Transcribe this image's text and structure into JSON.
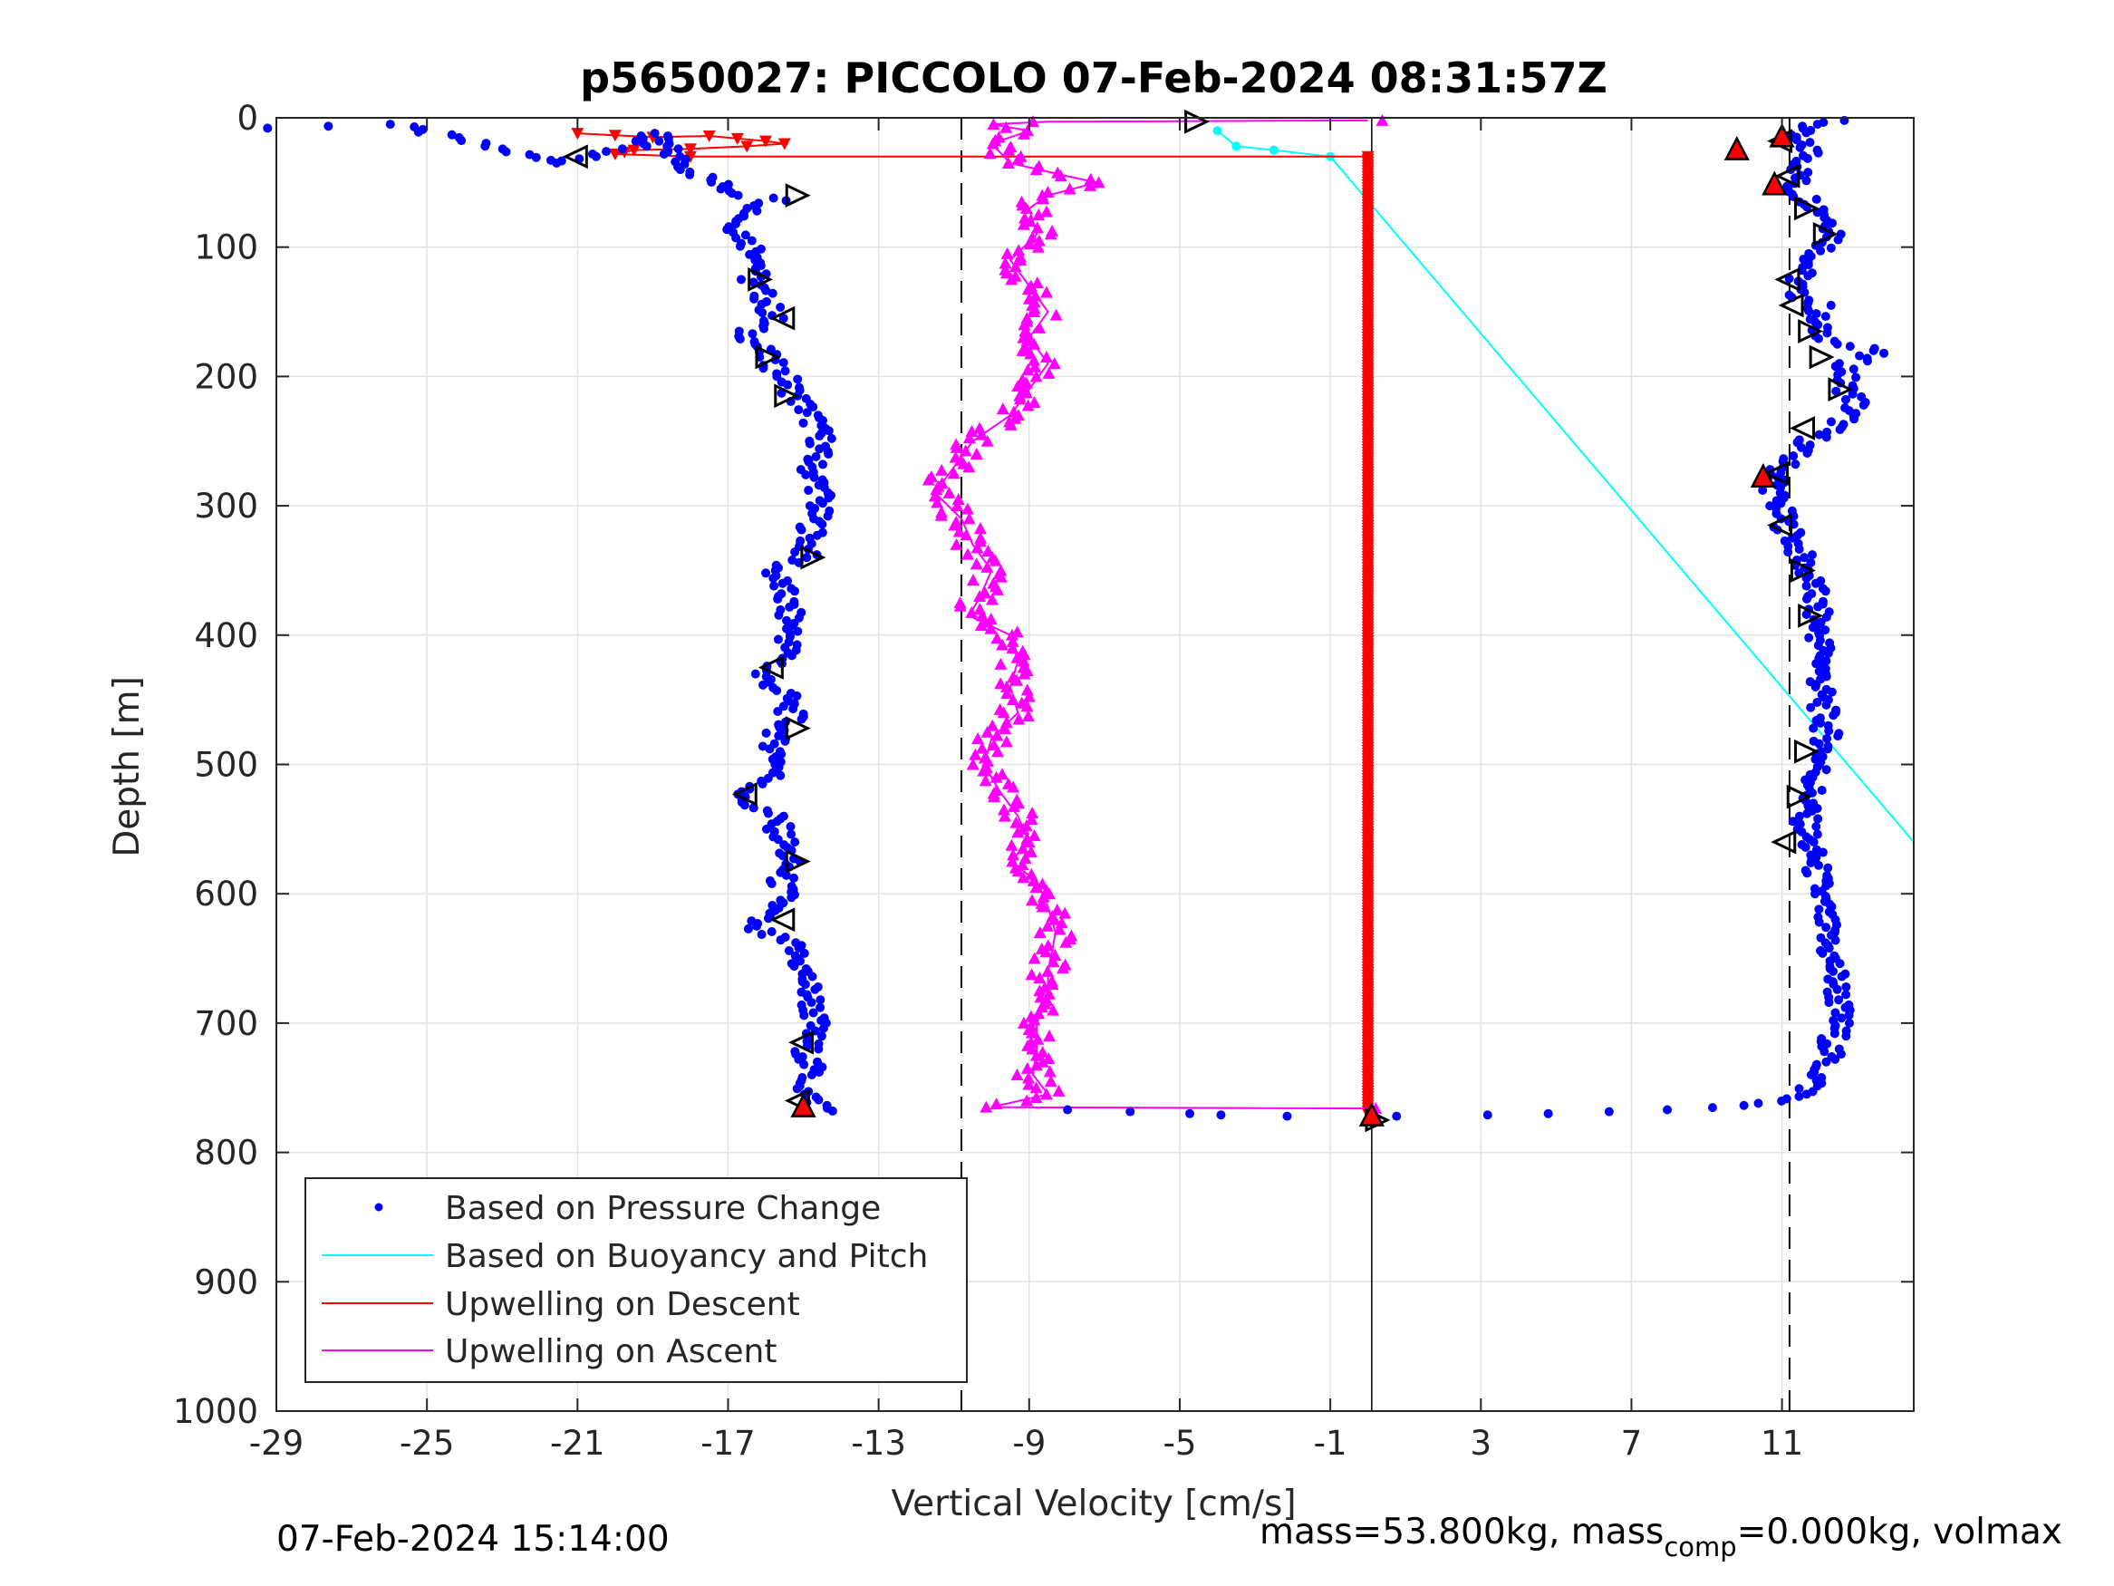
{
  "chart_data": {
    "type": "scatter",
    "title": "p5650027: PICCOLO 07-Feb-2024 08:31:57Z",
    "xlabel": "Vertical Velocity [cm/s]",
    "ylabel": "Depth [m]",
    "xlim": [
      -29,
      14.5
    ],
    "ylim": [
      0,
      1000
    ],
    "y_reversed": true,
    "grid": true,
    "xticks": [
      -29,
      -25,
      -21,
      -17,
      -13,
      -9,
      -5,
      -1,
      3,
      7,
      11
    ],
    "xtick_labels": [
      "-29",
      "-25",
      "-21",
      "-17",
      "-13",
      "-9",
      "-5",
      "-1",
      "3",
      "7",
      "11"
    ],
    "yticks": [
      0,
      100,
      200,
      300,
      400,
      500,
      600,
      700,
      800,
      900,
      1000
    ],
    "ytick_labels": [
      "0",
      "100",
      "200",
      "300",
      "400",
      "500",
      "600",
      "700",
      "800",
      "900",
      "1000"
    ],
    "legend_position": "bottom-left",
    "colors": {
      "pressure": "#0000ff",
      "buoyancy": "#00ffff",
      "descent": "#ff0000",
      "ascent": "#ff00ff"
    },
    "reference_lines": {
      "dashed_x": [
        -10.8,
        11.2
      ],
      "solid_x": 0.1
    },
    "series": [
      {
        "name": "Based on Pressure Change",
        "style": "dots",
        "descent": [
          [
            -29.0,
            8
          ],
          [
            -26.0,
            5
          ],
          [
            -25.0,
            11
          ],
          [
            -21.5,
            35
          ],
          [
            -20.5,
            30
          ],
          [
            -19.5,
            22
          ],
          [
            -19.0,
            12
          ],
          [
            -18.5,
            28
          ],
          [
            -18.0,
            40
          ],
          [
            -17.5,
            48
          ],
          [
            -17.0,
            55
          ],
          [
            -16.5,
            60
          ],
          [
            -15.5,
            62
          ],
          [
            -16.2,
            70
          ],
          [
            -16.8,
            82
          ],
          [
            -16.5,
            95
          ],
          [
            -16.0,
            110
          ],
          [
            -16.4,
            125
          ],
          [
            -16.0,
            140
          ],
          [
            -15.8,
            155
          ],
          [
            -16.5,
            165
          ],
          [
            -16.0,
            185
          ],
          [
            -15.5,
            200
          ],
          [
            -15.2,
            215
          ],
          [
            -14.8,
            230
          ],
          [
            -14.5,
            250
          ],
          [
            -14.8,
            270
          ],
          [
            -14.5,
            290
          ],
          [
            -14.7,
            310
          ],
          [
            -14.8,
            325
          ],
          [
            -15.0,
            340
          ],
          [
            -15.8,
            350
          ],
          [
            -15.5,
            370
          ],
          [
            -15.3,
            395
          ],
          [
            -15.5,
            420
          ],
          [
            -16.2,
            430
          ],
          [
            -15.5,
            445
          ],
          [
            -15.3,
            465
          ],
          [
            -15.8,
            480
          ],
          [
            -15.6,
            500
          ],
          [
            -16.0,
            515
          ],
          [
            -16.8,
            525
          ],
          [
            -15.8,
            540
          ],
          [
            -15.5,
            560
          ],
          [
            -15.4,
            575
          ],
          [
            -15.6,
            590
          ],
          [
            -15.5,
            605
          ],
          [
            -16.5,
            625
          ],
          [
            -15.3,
            640
          ],
          [
            -15.0,
            660
          ],
          [
            -14.8,
            680
          ],
          [
            -14.7,
            700
          ],
          [
            -14.9,
            720
          ],
          [
            -14.8,
            740
          ],
          [
            -15.0,
            755
          ],
          [
            -14.3,
            768
          ]
        ],
        "ascent": [
          [
            12.5,
            2
          ],
          [
            12.0,
            5
          ],
          [
            11.5,
            8
          ],
          [
            11.2,
            15
          ],
          [
            11.8,
            25
          ],
          [
            11.5,
            40
          ],
          [
            11.3,
            55
          ],
          [
            11.8,
            65
          ],
          [
            12.2,
            75
          ],
          [
            12.5,
            90
          ],
          [
            12.0,
            105
          ],
          [
            11.5,
            120
          ],
          [
            11.3,
            135
          ],
          [
            12.0,
            145
          ],
          [
            11.8,
            160
          ],
          [
            12.5,
            175
          ],
          [
            13.5,
            180
          ],
          [
            12.8,
            190
          ],
          [
            12.6,
            205
          ],
          [
            13.0,
            220
          ],
          [
            12.6,
            235
          ],
          [
            12.0,
            245
          ],
          [
            11.5,
            255
          ],
          [
            11.0,
            270
          ],
          [
            10.8,
            290
          ],
          [
            11.0,
            310
          ],
          [
            11.3,
            325
          ],
          [
            11.5,
            340
          ],
          [
            11.8,
            360
          ],
          [
            11.9,
            380
          ],
          [
            12.0,
            400
          ],
          [
            12.1,
            420
          ],
          [
            12.0,
            440
          ],
          [
            12.1,
            460
          ],
          [
            12.2,
            480
          ],
          [
            12.0,
            500
          ],
          [
            11.8,
            520
          ],
          [
            11.6,
            540
          ],
          [
            11.7,
            560
          ],
          [
            11.9,
            580
          ],
          [
            12.0,
            600
          ],
          [
            12.1,
            620
          ],
          [
            12.2,
            640
          ],
          [
            12.4,
            660
          ],
          [
            12.5,
            680
          ],
          [
            12.5,
            700
          ],
          [
            12.3,
            720
          ],
          [
            12.0,
            740
          ],
          [
            11.6,
            755
          ],
          [
            10.7,
            762
          ],
          [
            8.0,
            767
          ],
          [
            5.0,
            770
          ],
          [
            3.0,
            771
          ],
          [
            0.5,
            772
          ],
          [
            -2.0,
            772
          ],
          [
            -4.0,
            771
          ],
          [
            -5.0,
            770
          ],
          [
            -8.0,
            767
          ]
        ]
      },
      {
        "name": "Based on Buoyancy and Pitch",
        "style": "line",
        "points": [
          [
            -4.0,
            10
          ],
          [
            -3.5,
            22
          ],
          [
            -2.5,
            25
          ],
          [
            -1.0,
            30
          ],
          [
            14.5,
            560
          ]
        ]
      },
      {
        "name": "Upwelling on Descent",
        "style": "line-triangle-down",
        "points": [
          [
            -21.0,
            12
          ],
          [
            -19.0,
            15
          ],
          [
            -17.5,
            14
          ],
          [
            -16.0,
            18
          ],
          [
            -15.5,
            20
          ],
          [
            -16.5,
            22
          ],
          [
            -18.0,
            24
          ],
          [
            -19.5,
            25
          ],
          [
            -20.0,
            28
          ],
          [
            -18.0,
            30
          ],
          [
            0.0,
            30
          ],
          [
            0.0,
            100
          ],
          [
            0.0,
            200
          ],
          [
            0.0,
            300
          ],
          [
            0.0,
            400
          ],
          [
            0.0,
            500
          ],
          [
            0.0,
            600
          ],
          [
            0.0,
            700
          ],
          [
            0.0,
            770
          ]
        ]
      },
      {
        "name": "Upwelling on Ascent",
        "style": "line-triangle-up",
        "points": [
          [
            0.0,
            2
          ],
          [
            -8.5,
            3
          ],
          [
            -10.0,
            5
          ],
          [
            -9.0,
            10
          ],
          [
            -10.0,
            20
          ],
          [
            -9.5,
            35
          ],
          [
            -8.0,
            45
          ],
          [
            -7.2,
            50
          ],
          [
            -8.5,
            60
          ],
          [
            -9.0,
            70
          ],
          [
            -8.8,
            90
          ],
          [
            -9.5,
            110
          ],
          [
            -9.0,
            130
          ],
          [
            -8.5,
            150
          ],
          [
            -9.0,
            170
          ],
          [
            -8.5,
            190
          ],
          [
            -9.0,
            210
          ],
          [
            -9.5,
            230
          ],
          [
            -10.5,
            250
          ],
          [
            -11.0,
            270
          ],
          [
            -11.5,
            290
          ],
          [
            -10.8,
            310
          ],
          [
            -10.5,
            330
          ],
          [
            -10.0,
            350
          ],
          [
            -10.3,
            370
          ],
          [
            -10.6,
            385
          ],
          [
            -9.5,
            400
          ],
          [
            -9.3,
            420
          ],
          [
            -9.5,
            440
          ],
          [
            -9.3,
            460
          ],
          [
            -10.0,
            480
          ],
          [
            -10.2,
            500
          ],
          [
            -9.8,
            520
          ],
          [
            -9.3,
            540
          ],
          [
            -9.0,
            560
          ],
          [
            -9.5,
            575
          ],
          [
            -8.8,
            590
          ],
          [
            -8.5,
            610
          ],
          [
            -8.3,
            630
          ],
          [
            -8.5,
            660
          ],
          [
            -8.5,
            680
          ],
          [
            -8.8,
            700
          ],
          [
            -8.8,
            720
          ],
          [
            -8.9,
            740
          ],
          [
            -8.5,
            755
          ],
          [
            -10.0,
            765
          ],
          [
            0.0,
            766
          ]
        ]
      }
    ],
    "glide_markers": {
      "left": [
        [
          -21.0,
          30,
          "left"
        ],
        [
          -15.2,
          60,
          "right"
        ],
        [
          -16.2,
          125,
          "right"
        ],
        [
          -15.5,
          155,
          "left"
        ],
        [
          -16.0,
          185,
          "right"
        ],
        [
          -15.5,
          215,
          "right"
        ],
        [
          -14.8,
          340,
          "right"
        ],
        [
          -15.8,
          425,
          "left"
        ],
        [
          -15.2,
          472,
          "right"
        ],
        [
          -16.5,
          523,
          "left"
        ],
        [
          -15.2,
          575,
          "right"
        ],
        [
          -15.5,
          620,
          "left"
        ],
        [
          -15.0,
          715,
          "left"
        ],
        [
          -15.1,
          760,
          "left"
        ],
        [
          -4.6,
          3,
          "right"
        ]
      ],
      "right": [
        [
          11.0,
          18,
          "left"
        ],
        [
          11.2,
          45,
          "left"
        ],
        [
          11.6,
          70,
          "right"
        ],
        [
          12.1,
          90,
          "right"
        ],
        [
          11.2,
          125,
          "left"
        ],
        [
          11.3,
          145,
          "left"
        ],
        [
          11.7,
          165,
          "right"
        ],
        [
          12.0,
          185,
          "right"
        ],
        [
          12.5,
          210,
          "right"
        ],
        [
          11.6,
          240,
          "left"
        ],
        [
          10.9,
          275,
          "left"
        ],
        [
          11.0,
          315,
          "left"
        ],
        [
          11.5,
          350,
          "right"
        ],
        [
          11.7,
          385,
          "right"
        ],
        [
          11.6,
          490,
          "right"
        ],
        [
          11.4,
          525,
          "right"
        ],
        [
          11.1,
          560,
          "left"
        ],
        [
          0.2,
          775,
          "right"
        ]
      ],
      "red_up": [
        [
          9.8,
          25
        ],
        [
          10.8,
          52
        ],
        [
          10.5,
          278
        ],
        [
          11.0,
          15
        ],
        [
          -15.0,
          765
        ],
        [
          0.1,
          772
        ]
      ]
    },
    "footer_left": "07-Feb-2024 15:14:00",
    "footer_right_before": "mass=53.800kg, mass",
    "footer_right_sub": "comp",
    "footer_right_after": "=0.000kg, volmax"
  }
}
